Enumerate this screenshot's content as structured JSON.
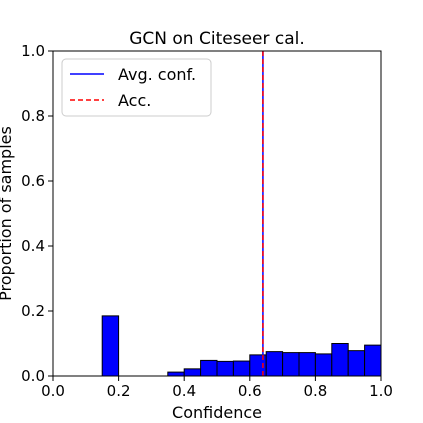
{
  "chart_data": {
    "type": "bar",
    "title": "GCN on Citeseer cal.",
    "xlabel": "Confidence",
    "ylabel": "Proportion of samples",
    "xlim": [
      0.0,
      1.0
    ],
    "ylim": [
      0.0,
      1.0
    ],
    "xticks": [
      "0.0",
      "0.2",
      "0.4",
      "0.6",
      "0.8",
      "1.0"
    ],
    "yticks": [
      "0.0",
      "0.2",
      "0.4",
      "0.6",
      "0.8",
      "1.0"
    ],
    "grid": false,
    "bin_width": 0.05,
    "bins": [
      {
        "x": 0.15,
        "value": 0.185
      },
      {
        "x": 0.35,
        "value": 0.012
      },
      {
        "x": 0.4,
        "value": 0.022
      },
      {
        "x": 0.45,
        "value": 0.048
      },
      {
        "x": 0.5,
        "value": 0.045
      },
      {
        "x": 0.55,
        "value": 0.046
      },
      {
        "x": 0.6,
        "value": 0.065
      },
      {
        "x": 0.65,
        "value": 0.075
      },
      {
        "x": 0.7,
        "value": 0.072
      },
      {
        "x": 0.75,
        "value": 0.072
      },
      {
        "x": 0.8,
        "value": 0.068
      },
      {
        "x": 0.85,
        "value": 0.1
      },
      {
        "x": 0.9,
        "value": 0.078
      },
      {
        "x": 0.95,
        "value": 0.095
      }
    ],
    "bar_color": "#0000ff",
    "bar_edge_color": "#000000",
    "series": [
      {
        "name": "Avg. conf.",
        "x": 0.64,
        "color": "#0000ff",
        "style": "solid"
      },
      {
        "name": "Acc.",
        "x": 0.64,
        "color": "#ff0000",
        "style": "dashed"
      }
    ],
    "legend": {
      "placement": "top-left"
    }
  }
}
